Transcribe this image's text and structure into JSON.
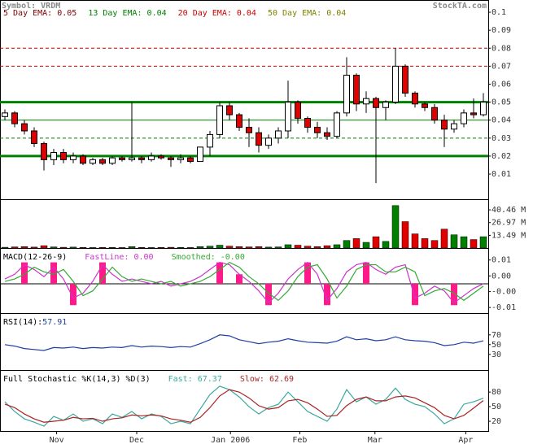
{
  "header": {
    "symbol": "Symbol: VRDM",
    "site": "StockTA.com"
  },
  "chart_data": [
    {
      "type": "candlestick",
      "ema_legend": [
        {
          "name": "5 Day EMA:",
          "value": 0.05,
          "color": "#800000"
        },
        {
          "name": "13 Day EMA:",
          "value": 0.04,
          "color": "#008000"
        },
        {
          "name": "20 Day EMA:",
          "value": 0.04,
          "color": "#cc0000"
        },
        {
          "name": "50 Day EMA:",
          "value": 0.04,
          "color": "#808000"
        }
      ],
      "open": [
        0.042,
        0.044,
        0.038,
        0.034,
        0.027,
        0.018,
        0.022,
        0.018,
        0.02,
        0.016,
        0.018,
        0.016,
        0.019,
        0.018,
        0.019,
        0.018,
        0.02,
        0.019,
        0.018,
        0.019,
        0.017,
        0.025,
        0.032,
        0.048,
        0.043,
        0.036,
        0.033,
        0.026,
        0.03,
        0.034,
        0.05,
        0.041,
        0.036,
        0.033,
        0.031,
        0.044,
        0.065,
        0.049,
        0.052,
        0.047,
        0.05,
        0.07,
        0.055,
        0.049,
        0.047,
        0.04,
        0.035,
        0.038,
        0.044,
        0.043
      ],
      "high": [
        0.046,
        0.045,
        0.04,
        0.036,
        0.028,
        0.024,
        0.024,
        0.022,
        0.021,
        0.019,
        0.019,
        0.02,
        0.02,
        0.05,
        0.02,
        0.022,
        0.021,
        0.02,
        0.021,
        0.02,
        0.025,
        0.034,
        0.05,
        0.05,
        0.044,
        0.041,
        0.036,
        0.032,
        0.036,
        0.062,
        0.051,
        0.042,
        0.039,
        0.036,
        0.045,
        0.075,
        0.066,
        0.056,
        0.053,
        0.051,
        0.08,
        0.071,
        0.056,
        0.05,
        0.049,
        0.043,
        0.04,
        0.046,
        0.052,
        0.055
      ],
      "low": [
        0.04,
        0.036,
        0.032,
        0.025,
        0.012,
        0.015,
        0.016,
        0.016,
        0.015,
        0.015,
        0.015,
        0.015,
        0.017,
        0.017,
        0.016,
        0.017,
        0.018,
        0.014,
        0.016,
        0.016,
        0.017,
        0.02,
        0.03,
        0.04,
        0.034,
        0.025,
        0.022,
        0.024,
        0.027,
        0.03,
        0.038,
        0.033,
        0.03,
        0.029,
        0.03,
        0.042,
        0.045,
        0.044,
        0.005,
        0.04,
        0.049,
        0.053,
        0.047,
        0.045,
        0.038,
        0.025,
        0.033,
        0.036,
        0.041,
        0.042
      ],
      "close": [
        0.044,
        0.038,
        0.034,
        0.027,
        0.018,
        0.022,
        0.018,
        0.02,
        0.016,
        0.018,
        0.016,
        0.019,
        0.018,
        0.019,
        0.018,
        0.02,
        0.019,
        0.018,
        0.019,
        0.017,
        0.025,
        0.032,
        0.048,
        0.043,
        0.036,
        0.033,
        0.026,
        0.03,
        0.034,
        0.05,
        0.041,
        0.036,
        0.033,
        0.031,
        0.044,
        0.065,
        0.049,
        0.052,
        0.047,
        0.05,
        0.07,
        0.055,
        0.049,
        0.047,
        0.04,
        0.035,
        0.038,
        0.044,
        0.043,
        0.05
      ],
      "up_color": "#ffffff",
      "down_color": "#e00000",
      "ylim": [
        -0.004,
        0.105
      ],
      "yticks": [
        0.01,
        0.02,
        0.03,
        0.04,
        0.05,
        0.06,
        0.07,
        0.08,
        0.09,
        0.1
      ],
      "reference_lines": [
        {
          "y": 0.08,
          "color": "#c00000",
          "dashed": true
        },
        {
          "y": 0.07,
          "color": "#c00000",
          "dashed": true
        },
        {
          "y": 0.05,
          "color": "#008000",
          "thick": true
        },
        {
          "y": 0.04,
          "color": "#008000"
        },
        {
          "y": 0.03,
          "color": "#008000",
          "dashed": true
        },
        {
          "y": 0.02,
          "color": "#008000",
          "thick": true
        }
      ]
    },
    {
      "type": "bar",
      "values": [
        0.8,
        1.2,
        1.5,
        1.0,
        2.5,
        1.2,
        0.8,
        1.0,
        0.6,
        0.5,
        0.7,
        0.6,
        0.5,
        1.5,
        0.6,
        0.5,
        0.7,
        0.8,
        0.6,
        0.5,
        1.5,
        2.0,
        3.0,
        2.0,
        1.5,
        1.2,
        1.5,
        1.0,
        1.2,
        3.5,
        3.0,
        2.0,
        1.5,
        2.5,
        3.5,
        8,
        10,
        6,
        12,
        7,
        45,
        28,
        15,
        10,
        8,
        20,
        14,
        12,
        9,
        12
      ],
      "up_color": "#008000",
      "down_color": "#e00000",
      "ylim": [
        0,
        50
      ],
      "yticks": [
        {
          "value": 13.49,
          "label": "13.49 M"
        },
        {
          "value": 26.97,
          "label": "26.97 M"
        },
        {
          "value": 40.46,
          "label": "40.46 M"
        }
      ]
    },
    {
      "type": "macd",
      "title": "MACD(12-26-9)",
      "series": [
        {
          "name": "FastLine:",
          "color": "#cc33cc",
          "legend_value": "0.00",
          "values": [
            0.002,
            0.004,
            0.008,
            0.006,
            0.003,
            0.007,
            0.002,
            -0.006,
            -0.004,
            0.001,
            0.008,
            0.004,
            0.001,
            0.002,
            0.001,
            0.0,
            0.001,
            -0.001,
            0.0,
            0.001,
            0.003,
            0.006,
            0.009,
            0.008,
            0.004,
            0.001,
            -0.003,
            -0.008,
            -0.004,
            0.002,
            0.006,
            0.009,
            0.004,
            -0.007,
            -0.002,
            0.005,
            0.008,
            0.009,
            0.006,
            0.004,
            0.007,
            0.008,
            -0.006,
            -0.004,
            -0.001,
            -0.003,
            -0.008,
            -0.005,
            -0.002,
            0.0
          ]
        },
        {
          "name": "Smoothed:",
          "color": "#33aa33",
          "legend_value": "-0.00",
          "values": [
            0.001,
            0.002,
            0.004,
            0.007,
            0.005,
            0.004,
            0.006,
            0.001,
            -0.005,
            -0.003,
            0.002,
            0.007,
            0.003,
            0.001,
            0.002,
            0.001,
            0.0,
            0.001,
            -0.001,
            0.0,
            0.001,
            0.003,
            0.006,
            0.009,
            0.007,
            0.003,
            0.0,
            -0.004,
            -0.007,
            -0.003,
            0.003,
            0.007,
            0.008,
            0.002,
            -0.006,
            -0.001,
            0.006,
            0.008,
            0.008,
            0.005,
            0.005,
            0.007,
            0.005,
            -0.005,
            -0.003,
            -0.002,
            -0.004,
            -0.007,
            -0.004,
            -0.001
          ]
        }
      ],
      "histogram": {
        "color": "#ff1a8c",
        "values": [
          null,
          null,
          0.009,
          null,
          null,
          0.009,
          null,
          -0.009,
          null,
          null,
          0.009,
          null,
          null,
          null,
          null,
          null,
          null,
          null,
          null,
          null,
          null,
          null,
          0.009,
          null,
          0.004,
          null,
          null,
          -0.009,
          null,
          null,
          null,
          0.009,
          null,
          -0.009,
          null,
          null,
          null,
          0.009,
          null,
          null,
          null,
          null,
          -0.009,
          null,
          null,
          null,
          -0.009,
          null,
          null,
          null
        ]
      },
      "ylim": [
        -0.012,
        0.0147
      ],
      "yticks": [
        -0.01,
        {
          "value": -0.0033,
          "label": "-0.00"
        },
        {
          "value": 0.0033,
          "label": "0.00"
        },
        0.01
      ]
    },
    {
      "type": "line",
      "title": "RSI(14):",
      "series": [
        {
          "color": "#1f3f9f",
          "values": [
            50,
            47,
            42,
            40,
            38,
            44,
            43,
            45,
            42,
            44,
            43,
            45,
            44,
            48,
            45,
            47,
            46,
            44,
            46,
            45,
            52,
            60,
            70,
            68,
            60,
            56,
            52,
            55,
            57,
            62,
            58,
            55,
            54,
            53,
            57,
            66,
            60,
            62,
            58,
            60,
            66,
            60,
            58,
            57,
            54,
            48,
            50,
            55,
            53,
            57.91
          ]
        }
      ],
      "ylim": [
        -2,
        113
      ],
      "yticks": [
        30,
        50,
        70
      ]
    },
    {
      "type": "line",
      "title": "Full Stochastic %K(14,3) %D(3)",
      "series": [
        {
          "name": "Fast:",
          "color": "#3aa8a0",
          "values": [
            60,
            40,
            25,
            18,
            10,
            30,
            22,
            35,
            20,
            25,
            15,
            35,
            28,
            40,
            25,
            35,
            30,
            15,
            20,
            15,
            45,
            75,
            92,
            85,
            70,
            50,
            35,
            48,
            55,
            80,
            60,
            40,
            30,
            20,
            45,
            85,
            60,
            70,
            55,
            65,
            88,
            65,
            55,
            50,
            35,
            15,
            25,
            55,
            60,
            67.37
          ]
        },
        {
          "name": "Slow:",
          "color": "#aa2222",
          "values": [
            55,
            48,
            35,
            25,
            18,
            20,
            22,
            28,
            25,
            26,
            20,
            25,
            27,
            33,
            31,
            33,
            31,
            25,
            22,
            18,
            28,
            48,
            72,
            85,
            80,
            68,
            52,
            45,
            48,
            62,
            65,
            58,
            45,
            30,
            32,
            52,
            65,
            70,
            62,
            62,
            70,
            72,
            68,
            58,
            48,
            32,
            25,
            32,
            47,
            62.69
          ]
        }
      ],
      "ylim": [
        0,
        122
      ],
      "yticks": [
        20,
        50,
        80
      ],
      "xlim": [
        -0.5,
        49.5
      ],
      "xticks": [
        {
          "value": 5.3,
          "label": "Nov"
        },
        {
          "value": 13.5,
          "label": "Dec"
        },
        {
          "value": 23.1,
          "label": "Jan 2006"
        },
        {
          "value": 30.2,
          "label": "Feb"
        },
        {
          "value": 37.9,
          "label": "Mar"
        },
        {
          "value": 47.2,
          "label": "Apr"
        }
      ]
    }
  ]
}
